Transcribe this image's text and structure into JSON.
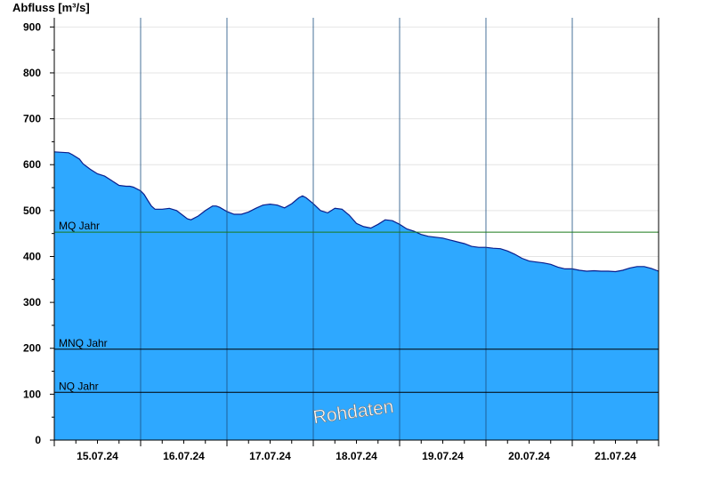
{
  "chart_data": {
    "type": "area",
    "ylabel": "Abfluss [m³/s]",
    "ylim": [
      0,
      920
    ],
    "yticks": [
      0,
      100,
      200,
      300,
      400,
      500,
      600,
      700,
      800,
      900
    ],
    "xlim_hours": [
      0,
      168
    ],
    "day_labels": [
      "15.07.24",
      "16.07.24",
      "17.07.24",
      "18.07.24",
      "19.07.24",
      "20.07.24",
      "21.07.24"
    ],
    "grid": true,
    "fill_color": "#2ea8ff",
    "line_color": "#0a1e8c",
    "x_unit": "hours since 15.07.24 00:00",
    "x": [
      0,
      2,
      4,
      5,
      7,
      8,
      10,
      12,
      14,
      16,
      18,
      20,
      21,
      22,
      24,
      25,
      26,
      27,
      28,
      30,
      32,
      34,
      36,
      37,
      38,
      40,
      42,
      44,
      45,
      46,
      48,
      50,
      52,
      54,
      56,
      58,
      60,
      62,
      64,
      66,
      68,
      69,
      70,
      72,
      74,
      76,
      78,
      80,
      82,
      84,
      86,
      88,
      90,
      92,
      94,
      96,
      98,
      100,
      102,
      104,
      106,
      108,
      110,
      112,
      114,
      116,
      118,
      120,
      122,
      124,
      126,
      128,
      130,
      132,
      134,
      136,
      138,
      140,
      142,
      144,
      146,
      148,
      150,
      152,
      154,
      156,
      158,
      160,
      162,
      164,
      166,
      168
    ],
    "values": [
      628,
      627,
      626,
      622,
      612,
      602,
      590,
      580,
      575,
      565,
      555,
      553,
      553,
      551,
      543,
      535,
      522,
      510,
      503,
      503,
      505,
      500,
      488,
      482,
      480,
      488,
      500,
      510,
      510,
      507,
      498,
      492,
      492,
      497,
      505,
      512,
      514,
      512,
      506,
      515,
      528,
      532,
      528,
      515,
      500,
      495,
      505,
      503,
      490,
      472,
      465,
      462,
      470,
      480,
      478,
      470,
      460,
      455,
      448,
      444,
      442,
      440,
      436,
      432,
      428,
      422,
      420,
      420,
      418,
      417,
      412,
      405,
      396,
      390,
      388,
      386,
      383,
      377,
      373,
      373,
      370,
      368,
      369,
      368,
      368,
      367,
      370,
      375,
      378,
      378,
      374,
      368
    ],
    "reference_lines": [
      {
        "label": "MQ Jahr",
        "value": 453,
        "color": "#1a7a1a"
      },
      {
        "label": "MNQ Jahr",
        "value": 198,
        "color": "#000000"
      },
      {
        "label": "NQ Jahr",
        "value": 104,
        "color": "#000000"
      }
    ],
    "annotation": "Rohdaten"
  }
}
